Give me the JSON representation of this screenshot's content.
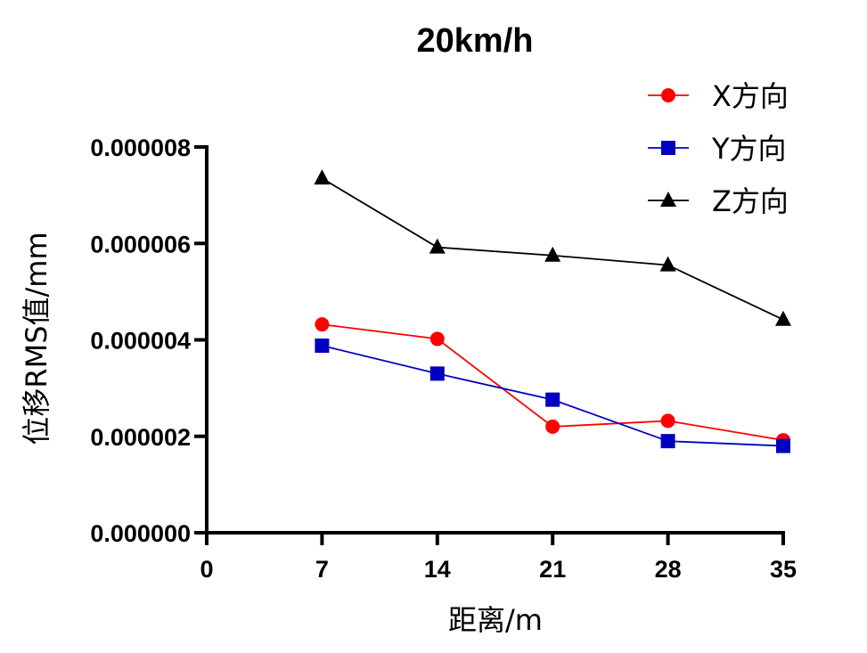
{
  "chart_data": {
    "type": "line",
    "title": "20km/h",
    "xlabel": "距离/m",
    "ylabel": "位移RMS值/mm",
    "x": [
      7,
      14,
      21,
      28,
      35
    ],
    "xlim": [
      0,
      35
    ],
    "ylim": [
      0,
      8e-06
    ],
    "x_ticks": [
      "0",
      "7",
      "14",
      "21",
      "28",
      "35"
    ],
    "y_ticks": [
      "0.000000",
      "0.000002",
      "0.000004",
      "0.000006",
      "0.000008"
    ],
    "grid": false,
    "legend_position": "top-right",
    "series": [
      {
        "name": "X方向",
        "color": "#ff0000",
        "marker": "circle",
        "values": [
          4.32e-06,
          4.02e-06,
          2.2e-06,
          2.32e-06,
          1.92e-06
        ]
      },
      {
        "name": "Y方向",
        "color": "#0000c0",
        "marker": "square",
        "values": [
          3.88e-06,
          3.3e-06,
          2.76e-06,
          1.9e-06,
          1.8e-06
        ]
      },
      {
        "name": "Z方向",
        "color": "#000000",
        "marker": "triangle",
        "values": [
          7.35e-06,
          5.92e-06,
          5.75e-06,
          5.55e-06,
          4.42e-06
        ]
      }
    ]
  }
}
